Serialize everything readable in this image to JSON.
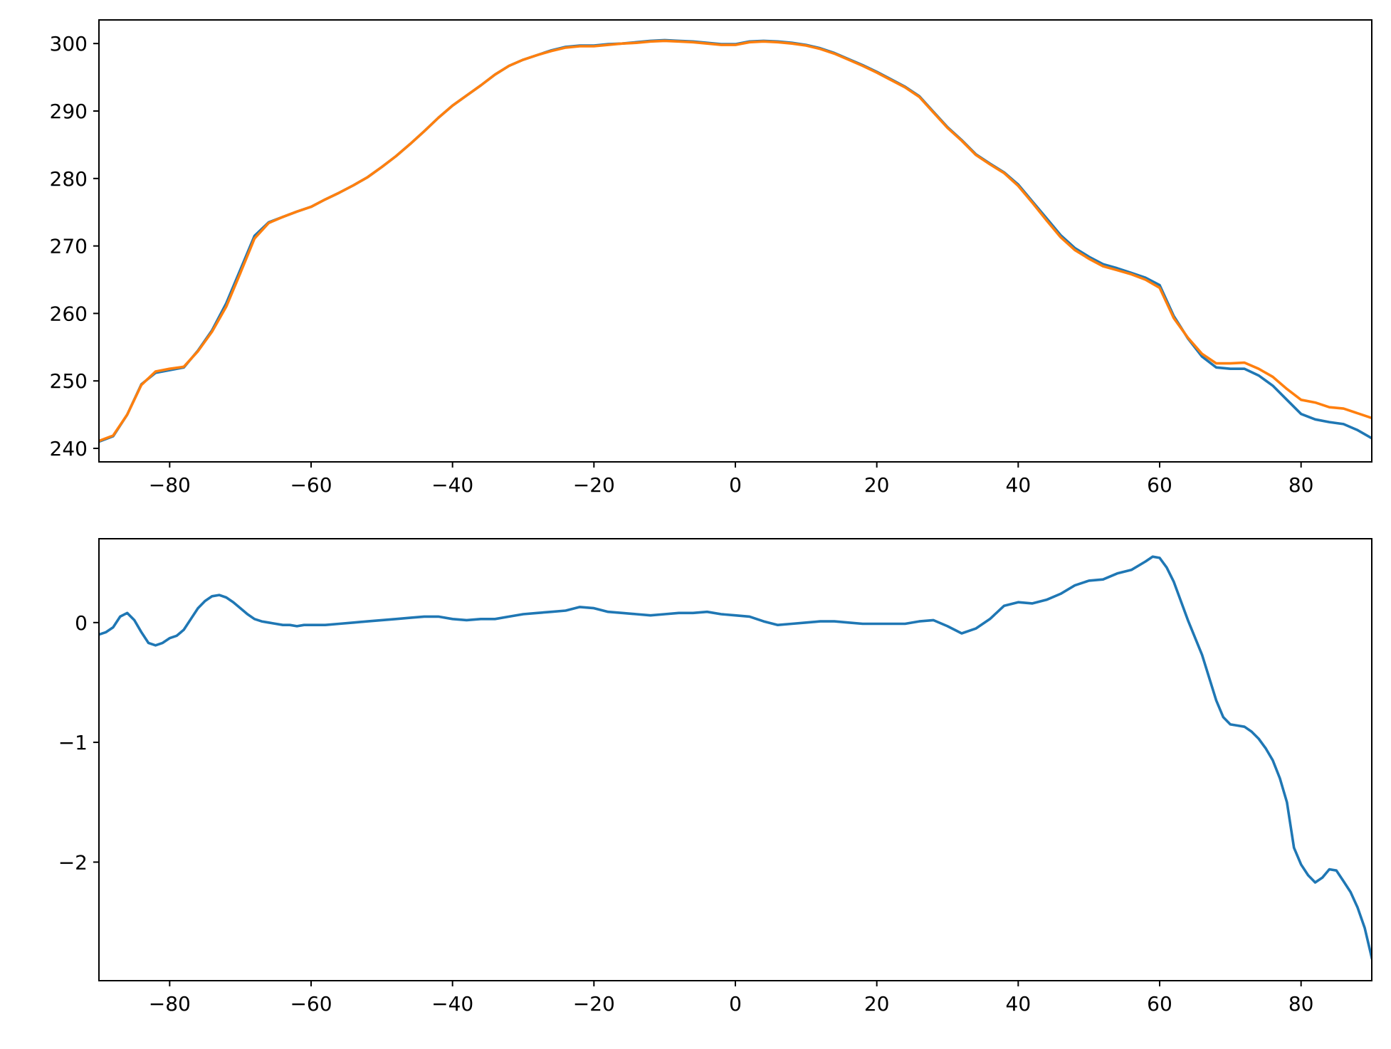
{
  "chart_data": [
    {
      "type": "line",
      "xlim": [
        -90,
        90
      ],
      "ylim": [
        238,
        303.5
      ],
      "xticks": [
        -80,
        -60,
        -40,
        -20,
        0,
        20,
        40,
        60,
        80
      ],
      "xtick_labels": [
        "−80",
        "−60",
        "−40",
        "−20",
        "0",
        "20",
        "40",
        "60",
        "80"
      ],
      "yticks": [
        240,
        250,
        260,
        270,
        280,
        290,
        300
      ],
      "ytick_labels": [
        "240",
        "250",
        "260",
        "270",
        "280",
        "290",
        "300"
      ],
      "grid": false,
      "series": [
        {
          "color": "#1f77b4",
          "x": [
            -90,
            -88,
            -86,
            -84,
            -82,
            -80,
            -78,
            -76,
            -74,
            -72,
            -70,
            -68,
            -66,
            -64,
            -62,
            -60,
            -58,
            -56,
            -54,
            -52,
            -50,
            -48,
            -46,
            -44,
            -42,
            -40,
            -38,
            -36,
            -34,
            -32,
            -30,
            -28,
            -26,
            -24,
            -22,
            -20,
            -18,
            -16,
            -14,
            -12,
            -10,
            -8,
            -6,
            -4,
            -2,
            0,
            2,
            4,
            6,
            8,
            10,
            12,
            14,
            16,
            18,
            20,
            22,
            24,
            26,
            28,
            30,
            32,
            34,
            36,
            38,
            40,
            42,
            44,
            46,
            48,
            50,
            52,
            54,
            56,
            58,
            60,
            62,
            64,
            66,
            68,
            70,
            72,
            74,
            76,
            78,
            80,
            82,
            84,
            86,
            88,
            90
          ],
          "y": [
            241,
            241.8,
            245,
            249.5,
            251.2,
            251.6,
            252,
            254.5,
            257.5,
            261.5,
            266.5,
            271.5,
            273.5,
            274.3,
            275.1,
            275.8,
            276.9,
            277.9,
            279,
            280.2,
            281.7,
            283.3,
            285.1,
            287,
            289,
            290.8,
            292.3,
            293.8,
            295.4,
            296.7,
            297.6,
            298.3,
            299,
            299.5,
            299.7,
            299.7,
            299.9,
            300,
            300.2,
            300.4,
            300.5,
            300.4,
            300.3,
            300.1,
            299.9,
            299.9,
            300.3,
            300.4,
            300.3,
            300.1,
            299.8,
            299.3,
            298.6,
            297.7,
            296.8,
            295.8,
            294.7,
            293.6,
            292.2,
            289.9,
            287.6,
            285.7,
            283.6,
            282.2,
            280.9,
            279.1,
            276.6,
            274.1,
            271.6,
            269.7,
            268.4,
            267.3,
            266.7,
            266,
            265.3,
            264.2,
            259.6,
            256.3,
            253.6,
            252,
            251.8,
            251.8,
            250.8,
            249.3,
            247.2,
            245.1,
            244.3,
            243.9,
            243.6,
            242.7,
            241.5
          ]
        },
        {
          "color": "#ff7f0e",
          "x": [
            -90,
            -88,
            -86,
            -84,
            -82,
            -80,
            -78,
            -76,
            -74,
            -72,
            -70,
            -68,
            -66,
            -64,
            -62,
            -60,
            -58,
            -56,
            -54,
            -52,
            -50,
            -48,
            -46,
            -44,
            -42,
            -40,
            -38,
            -36,
            -34,
            -32,
            -30,
            -28,
            -26,
            -24,
            -22,
            -20,
            -18,
            -16,
            -14,
            -12,
            -10,
            -8,
            -6,
            -4,
            -2,
            0,
            2,
            4,
            6,
            8,
            10,
            12,
            14,
            16,
            18,
            20,
            22,
            24,
            26,
            28,
            30,
            32,
            34,
            36,
            38,
            40,
            42,
            44,
            46,
            48,
            50,
            52,
            54,
            56,
            58,
            60,
            62,
            64,
            66,
            68,
            70,
            72,
            74,
            76,
            78,
            80,
            82,
            84,
            86,
            88,
            90
          ],
          "y": [
            241.1,
            241.9,
            245,
            249.4,
            251.4,
            251.8,
            252.1,
            254.4,
            257.3,
            261,
            266,
            271.1,
            273.4,
            274.3,
            275.1,
            275.8,
            276.9,
            277.9,
            279,
            280.2,
            281.7,
            283.3,
            285.1,
            287,
            289,
            290.8,
            292.3,
            293.8,
            295.4,
            296.7,
            297.6,
            298.3,
            298.9,
            299.4,
            299.6,
            299.6,
            299.8,
            300,
            300.1,
            300.3,
            300.4,
            300.3,
            300.2,
            300,
            299.8,
            299.8,
            300.2,
            300.3,
            300.2,
            300,
            299.7,
            299.2,
            298.5,
            297.6,
            296.7,
            295.7,
            294.6,
            293.5,
            292.1,
            289.8,
            287.5,
            285.6,
            283.5,
            282.1,
            280.8,
            278.9,
            276.4,
            273.8,
            271.3,
            269.4,
            268.1,
            267,
            266.4,
            265.8,
            265,
            263.8,
            259.3,
            256.4,
            254,
            252.6,
            252.6,
            252.7,
            251.8,
            250.6,
            248.8,
            247.2,
            246.8,
            246.1,
            245.9,
            245.2,
            244.5
          ]
        }
      ]
    },
    {
      "type": "line",
      "xlim": [
        -90,
        90
      ],
      "ylim": [
        -2.99,
        0.7
      ],
      "xticks": [
        -80,
        -60,
        -40,
        -20,
        0,
        20,
        40,
        60,
        80
      ],
      "xtick_labels": [
        "−80",
        "−60",
        "−40",
        "−20",
        "0",
        "20",
        "40",
        "60",
        "80"
      ],
      "yticks": [
        0,
        -1,
        -2
      ],
      "ytick_labels": [
        "0",
        "−1",
        "−2"
      ],
      "grid": false,
      "series": [
        {
          "color": "#1f77b4",
          "x": [
            -90,
            -89,
            -88,
            -87,
            -86,
            -85,
            -84,
            -83,
            -82,
            -81,
            -80,
            -79,
            -78,
            -77,
            -76,
            -75,
            -74,
            -73,
            -72,
            -71,
            -70,
            -69,
            -68,
            -67,
            -66,
            -65,
            -64,
            -63,
            -62,
            -61,
            -60,
            -58,
            -56,
            -54,
            -52,
            -50,
            -48,
            -46,
            -44,
            -42,
            -40,
            -38,
            -36,
            -34,
            -32,
            -30,
            -28,
            -26,
            -24,
            -22,
            -20,
            -18,
            -16,
            -14,
            -12,
            -10,
            -8,
            -6,
            -4,
            -2,
            0,
            2,
            4,
            6,
            8,
            10,
            12,
            14,
            16,
            18,
            20,
            22,
            24,
            26,
            28,
            30,
            32,
            34,
            36,
            38,
            40,
            42,
            44,
            46,
            48,
            50,
            52,
            54,
            56,
            58,
            59,
            60,
            61,
            62,
            64,
            66,
            68,
            69,
            70,
            71,
            72,
            73,
            74,
            75,
            76,
            77,
            78,
            79,
            80,
            81,
            82,
            83,
            84,
            85,
            86,
            87,
            88,
            89,
            90
          ],
          "y": [
            -0.1,
            -0.08,
            -0.04,
            0.05,
            0.08,
            0.02,
            -0.08,
            -0.17,
            -0.19,
            -0.17,
            -0.13,
            -0.11,
            -0.06,
            0.03,
            0.12,
            0.18,
            0.22,
            0.23,
            0.21,
            0.17,
            0.12,
            0.07,
            0.03,
            0.01,
            0,
            -0.01,
            -0.02,
            -0.02,
            -0.03,
            -0.02,
            -0.02,
            -0.02,
            -0.01,
            0,
            0.01,
            0.02,
            0.03,
            0.04,
            0.05,
            0.05,
            0.03,
            0.02,
            0.03,
            0.03,
            0.05,
            0.07,
            0.08,
            0.09,
            0.1,
            0.13,
            0.12,
            0.09,
            0.08,
            0.07,
            0.06,
            0.07,
            0.08,
            0.08,
            0.09,
            0.07,
            0.06,
            0.05,
            0.01,
            -0.02,
            -0.01,
            0,
            0.01,
            0.01,
            0,
            -0.01,
            -0.01,
            -0.01,
            -0.01,
            0.01,
            0.02,
            -0.03,
            -0.09,
            -0.05,
            0.03,
            0.14,
            0.17,
            0.16,
            0.19,
            0.24,
            0.31,
            0.35,
            0.36,
            0.41,
            0.44,
            0.51,
            0.55,
            0.54,
            0.46,
            0.34,
            0.02,
            -0.27,
            -0.65,
            -0.79,
            -0.85,
            -0.86,
            -0.87,
            -0.91,
            -0.97,
            -1.05,
            -1.15,
            -1.3,
            -1.5,
            -1.88,
            -2.02,
            -2.11,
            -2.17,
            -2.13,
            -2.06,
            -2.07,
            -2.16,
            -2.25,
            -2.38,
            -2.55,
            -2.8
          ]
        }
      ]
    }
  ]
}
